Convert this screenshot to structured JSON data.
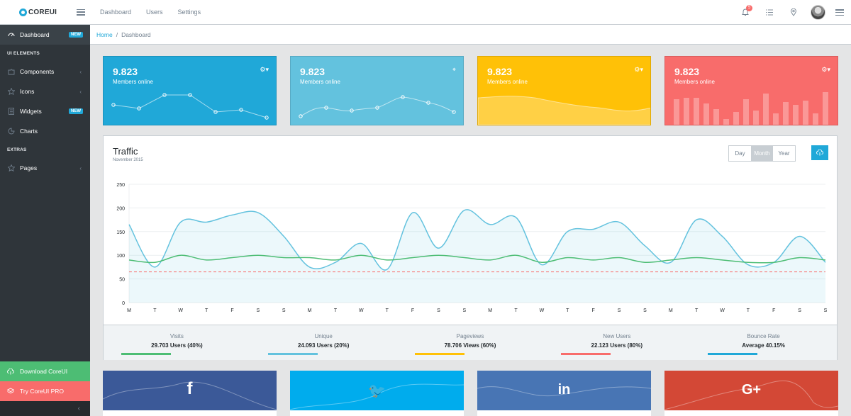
{
  "brand": {
    "name": "COREUI"
  },
  "topnav": [
    "Dashboard",
    "Users",
    "Settings"
  ],
  "header": {
    "notification_count": "5"
  },
  "breadcrumb": {
    "home": "Home",
    "current": "Dashboard"
  },
  "sidebar": {
    "items": [
      {
        "label": "Dashboard",
        "badge": "NEW",
        "icon": "speedometer-icon"
      },
      {
        "title": "UI ELEMENTS"
      },
      {
        "label": "Components",
        "icon": "puzzle-icon",
        "chevron": "‹"
      },
      {
        "label": "Icons",
        "icon": "star-icon",
        "chevron": "‹"
      },
      {
        "label": "Widgets",
        "badge": "NEW",
        "icon": "calculator-icon"
      },
      {
        "label": "Charts",
        "icon": "pie-chart-icon"
      },
      {
        "title": "EXTRAS"
      },
      {
        "label": "Pages",
        "icon": "star-icon",
        "chevron": "‹"
      }
    ],
    "download": "Download CoreUI",
    "pro": "Try CoreUI PRO",
    "minimizer": "‹"
  },
  "stat_cards": [
    {
      "value": "9.823",
      "label": "Members online",
      "color": "#20a8d8",
      "control": "gear-dropdown"
    },
    {
      "value": "9.823",
      "label": "Members online",
      "color": "#63c2de",
      "control": "location-pin"
    },
    {
      "value": "9.823",
      "label": "Members online",
      "color": "#ffc107",
      "control": "gear-dropdown"
    },
    {
      "value": "9.823",
      "label": "Members online",
      "color": "#f86c6b",
      "control": "gear-dropdown"
    }
  ],
  "traffic": {
    "title": "Traffic",
    "subtitle": "November 2015",
    "buttons": [
      "Day",
      "Month",
      "Year"
    ],
    "active_button": "Month",
    "footer": [
      {
        "title": "Visits",
        "value": "29.703 Users (40%)",
        "color": "#4dbd74"
      },
      {
        "title": "Unique",
        "value": "24.093 Users (20%)",
        "color": "#63c2de"
      },
      {
        "title": "Pageviews",
        "value": "78.706 Views (60%)",
        "color": "#ffc107"
      },
      {
        "title": "New Users",
        "value": "22.123 Users (80%)",
        "color": "#f86c6b"
      },
      {
        "title": "Bounce Rate",
        "value": "Average 40.15%",
        "color": "#20a8d8"
      }
    ]
  },
  "chart_data": {
    "type": "line",
    "title": "Traffic",
    "ylim": [
      0,
      250
    ],
    "yticks": [
      "250",
      "200",
      "150",
      "100",
      "50",
      "0"
    ],
    "categories": [
      "M",
      "T",
      "W",
      "T",
      "F",
      "S",
      "S",
      "M",
      "T",
      "W",
      "T",
      "F",
      "S",
      "S",
      "M",
      "T",
      "W",
      "T",
      "F",
      "S",
      "S",
      "M",
      "T",
      "W",
      "T",
      "F",
      "S",
      "S"
    ],
    "series": [
      {
        "color": "#63c2de",
        "fill": true,
        "values": [
          165,
          75,
          170,
          170,
          185,
          190,
          140,
          75,
          85,
          125,
          70,
          190,
          115,
          195,
          165,
          180,
          80,
          150,
          155,
          170,
          120,
          85,
          175,
          140,
          80,
          85,
          140,
          85
        ]
      },
      {
        "color": "#4dbd74",
        "fill": false,
        "values": [
          90,
          85,
          100,
          90,
          95,
          100,
          95,
          95,
          90,
          100,
          90,
          95,
          100,
          95,
          90,
          100,
          85,
          95,
          90,
          95,
          85,
          90,
          95,
          90,
          85,
          85,
          95,
          90
        ]
      },
      {
        "color": "#f86c6b",
        "dashed": true,
        "values": [
          65,
          65,
          65,
          65,
          65,
          65,
          65,
          65,
          65,
          65,
          65,
          65,
          65,
          65,
          65,
          65,
          65,
          65,
          65,
          65,
          65,
          65,
          65,
          65,
          65,
          65,
          65,
          65
        ]
      }
    ]
  },
  "social": [
    {
      "icon": "facebook-icon",
      "glyph": "f",
      "color": "#3b5998"
    },
    {
      "icon": "twitter-icon",
      "glyph": "🐦",
      "color": "#00aced"
    },
    {
      "icon": "linkedin-icon",
      "glyph": "in",
      "color": "#4875b4"
    },
    {
      "icon": "google-plus-icon",
      "glyph": "G+",
      "color": "#d34836"
    }
  ]
}
